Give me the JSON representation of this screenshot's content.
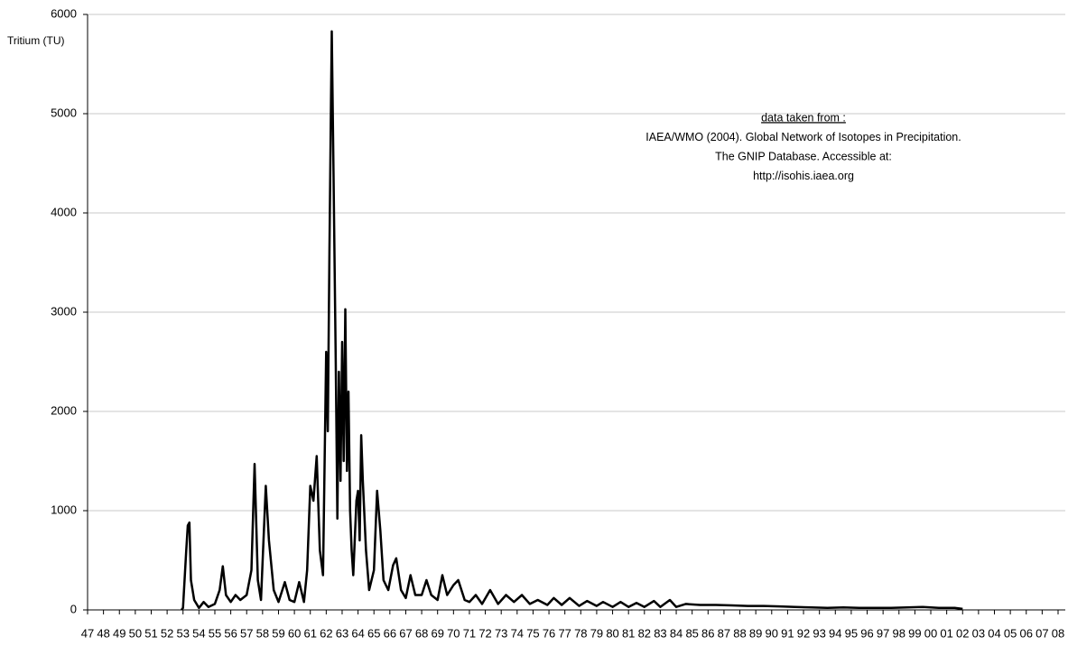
{
  "chart_data": {
    "type": "line",
    "y_label": "Tritium (TU)",
    "annotation": [
      "data taken from :",
      "IAEA/WMO (2004). Global Network of Isotopes in Precipitation.",
      "The GNIP Database. Accessible at:",
      "http://isohis.iaea.org"
    ],
    "color": "#000000",
    "grid": true,
    "x": [
      1952.9,
      1953.0,
      1953.2,
      1953.3,
      1953.4,
      1953.5,
      1953.7,
      1954.0,
      1954.3,
      1954.6,
      1955.0,
      1955.3,
      1955.5,
      1955.7,
      1956.0,
      1956.3,
      1956.6,
      1957.0,
      1957.3,
      1957.5,
      1957.7,
      1957.9,
      1958.2,
      1958.4,
      1958.7,
      1959.0,
      1959.4,
      1959.7,
      1960.0,
      1960.3,
      1960.6,
      1960.8,
      1961.0,
      1961.2,
      1961.4,
      1961.6,
      1961.8,
      1962.0,
      1962.1,
      1962.2,
      1962.3,
      1962.35,
      1962.45,
      1962.6,
      1962.7,
      1962.8,
      1962.9,
      1963.0,
      1963.1,
      1963.2,
      1963.3,
      1963.4,
      1963.5,
      1963.6,
      1963.7,
      1963.9,
      1964.0,
      1964.1,
      1964.2,
      1964.3,
      1964.5,
      1964.7,
      1965.0,
      1965.2,
      1965.4,
      1965.6,
      1965.9,
      1966.2,
      1966.4,
      1966.7,
      1967.0,
      1967.3,
      1967.6,
      1968.0,
      1968.3,
      1968.6,
      1969.0,
      1969.3,
      1969.6,
      1970.0,
      1970.3,
      1970.7,
      1971.0,
      1971.4,
      1971.8,
      1972.3,
      1972.8,
      1973.3,
      1973.8,
      1974.3,
      1974.8,
      1975.3,
      1975.9,
      1976.3,
      1976.8,
      1977.3,
      1977.9,
      1978.4,
      1979.0,
      1979.4,
      1980.0,
      1980.5,
      1981.0,
      1981.5,
      1982.0,
      1982.6,
      1983.0,
      1983.6,
      1984.0,
      1984.6,
      1985.5,
      1986.5,
      1987.5,
      1988.5,
      1989.5,
      1990.5,
      1991.5,
      1992.5,
      1993.5,
      1994.5,
      1995.5,
      1996.5,
      1997.5,
      1998.5,
      1999.5,
      2000.5,
      2001.5,
      2002.0
    ],
    "values": [
      0,
      20,
      600,
      850,
      880,
      300,
      100,
      20,
      80,
      30,
      60,
      200,
      440,
      150,
      80,
      150,
      100,
      150,
      400,
      1470,
      300,
      100,
      1250,
      700,
      200,
      80,
      280,
      100,
      80,
      280,
      80,
      400,
      1250,
      1100,
      1550,
      600,
      350,
      2600,
      1800,
      3600,
      5100,
      5830,
      4500,
      2500,
      920,
      2400,
      1300,
      2700,
      1500,
      3030,
      1400,
      2200,
      1000,
      600,
      350,
      1100,
      1200,
      700,
      1760,
      1300,
      600,
      200,
      400,
      1200,
      800,
      300,
      200,
      450,
      520,
      200,
      120,
      350,
      150,
      150,
      300,
      150,
      100,
      350,
      150,
      250,
      300,
      100,
      80,
      150,
      60,
      200,
      60,
      150,
      80,
      150,
      60,
      100,
      50,
      120,
      50,
      120,
      40,
      90,
      40,
      80,
      30,
      80,
      30,
      70,
      30,
      90,
      30,
      100,
      30,
      60,
      50,
      50,
      45,
      40,
      40,
      35,
      30,
      25,
      20,
      25,
      20,
      20,
      20,
      25,
      30,
      20,
      20,
      10
    ],
    "xlim": [
      1947,
      2008
    ],
    "xticks": [
      {
        "value": 1947,
        "label": "47"
      },
      {
        "value": 1948,
        "label": "48"
      },
      {
        "value": 1949,
        "label": "49"
      },
      {
        "value": 1950,
        "label": "50"
      },
      {
        "value": 1951,
        "label": "51"
      },
      {
        "value": 1952,
        "label": "52"
      },
      {
        "value": 1953,
        "label": "53"
      },
      {
        "value": 1954,
        "label": "54"
      },
      {
        "value": 1955,
        "label": "55"
      },
      {
        "value": 1956,
        "label": "56"
      },
      {
        "value": 1957,
        "label": "57"
      },
      {
        "value": 1958,
        "label": "58"
      },
      {
        "value": 1959,
        "label": "59"
      },
      {
        "value": 1960,
        "label": "60"
      },
      {
        "value": 1961,
        "label": "61"
      },
      {
        "value": 1962,
        "label": "62"
      },
      {
        "value": 1963,
        "label": "63"
      },
      {
        "value": 1964,
        "label": "64"
      },
      {
        "value": 1965,
        "label": "65"
      },
      {
        "value": 1966,
        "label": "66"
      },
      {
        "value": 1967,
        "label": "67"
      },
      {
        "value": 1968,
        "label": "68"
      },
      {
        "value": 1969,
        "label": "69"
      },
      {
        "value": 1970,
        "label": "70"
      },
      {
        "value": 1971,
        "label": "71"
      },
      {
        "value": 1972,
        "label": "72"
      },
      {
        "value": 1973,
        "label": "73"
      },
      {
        "value": 1974,
        "label": "74"
      },
      {
        "value": 1975,
        "label": "75"
      },
      {
        "value": 1976,
        "label": "76"
      },
      {
        "value": 1977,
        "label": "77"
      },
      {
        "value": 1978,
        "label": "78"
      },
      {
        "value": 1979,
        "label": "79"
      },
      {
        "value": 1980,
        "label": "80"
      },
      {
        "value": 1981,
        "label": "81"
      },
      {
        "value": 1982,
        "label": "82"
      },
      {
        "value": 1983,
        "label": "83"
      },
      {
        "value": 1984,
        "label": "84"
      },
      {
        "value": 1985,
        "label": "85"
      },
      {
        "value": 1986,
        "label": "86"
      },
      {
        "value": 1987,
        "label": "87"
      },
      {
        "value": 1988,
        "label": "88"
      },
      {
        "value": 1989,
        "label": "89"
      },
      {
        "value": 1990,
        "label": "90"
      },
      {
        "value": 1991,
        "label": "91"
      },
      {
        "value": 1992,
        "label": "92"
      },
      {
        "value": 1993,
        "label": "93"
      },
      {
        "value": 1994,
        "label": "94"
      },
      {
        "value": 1995,
        "label": "95"
      },
      {
        "value": 1996,
        "label": "96"
      },
      {
        "value": 1997,
        "label": "97"
      },
      {
        "value": 1998,
        "label": "98"
      },
      {
        "value": 1999,
        "label": "99"
      },
      {
        "value": 2000,
        "label": "00"
      },
      {
        "value": 2001,
        "label": "01"
      },
      {
        "value": 2002,
        "label": "02"
      },
      {
        "value": 2003,
        "label": "03"
      },
      {
        "value": 2004,
        "label": "04"
      },
      {
        "value": 2005,
        "label": "05"
      },
      {
        "value": 2006,
        "label": "06"
      },
      {
        "value": 2007,
        "label": "07"
      },
      {
        "value": 2008,
        "label": "08"
      }
    ],
    "ylim": [
      0,
      6000
    ],
    "yticks": [
      0,
      1000,
      2000,
      3000,
      4000,
      5000,
      6000
    ]
  }
}
